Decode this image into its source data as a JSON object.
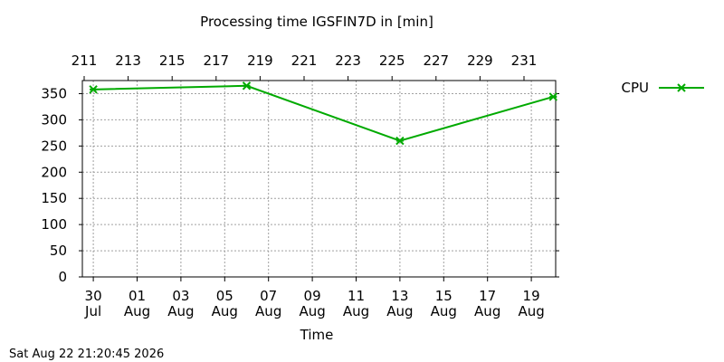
{
  "chart_data": {
    "type": "line",
    "title": "Processing time IGSFIN7D in [min]",
    "xlabel": "Time",
    "ylabel": "",
    "ylim": [
      0,
      375
    ],
    "yticks": [
      0,
      50,
      100,
      150,
      200,
      250,
      300,
      350
    ],
    "x_axis_dates": [
      {
        "day": "30",
        "month": "Jul"
      },
      {
        "day": "01",
        "month": "Aug"
      },
      {
        "day": "03",
        "month": "Aug"
      },
      {
        "day": "05",
        "month": "Aug"
      },
      {
        "day": "07",
        "month": "Aug"
      },
      {
        "day": "09",
        "month": "Aug"
      },
      {
        "day": "11",
        "month": "Aug"
      },
      {
        "day": "13",
        "month": "Aug"
      },
      {
        "day": "15",
        "month": "Aug"
      },
      {
        "day": "17",
        "month": "Aug"
      },
      {
        "day": "19",
        "month": "Aug"
      }
    ],
    "top_axis_doy": [
      "211",
      "213",
      "215",
      "217",
      "219",
      "221",
      "223",
      "225",
      "227",
      "229",
      "231"
    ],
    "grid": true,
    "legend_position": "top-right",
    "series": [
      {
        "name": "CPU",
        "color": "#00aa00",
        "points": [
          {
            "x": "2026-07-30",
            "y": 358
          },
          {
            "x": "2026-08-06",
            "y": 365
          },
          {
            "x": "2026-08-13",
            "y": 260
          },
          {
            "x": "2026-08-20",
            "y": 344
          }
        ]
      }
    ]
  },
  "footer": {
    "timestamp": "Sat Aug 22 21:20:45 2026"
  }
}
